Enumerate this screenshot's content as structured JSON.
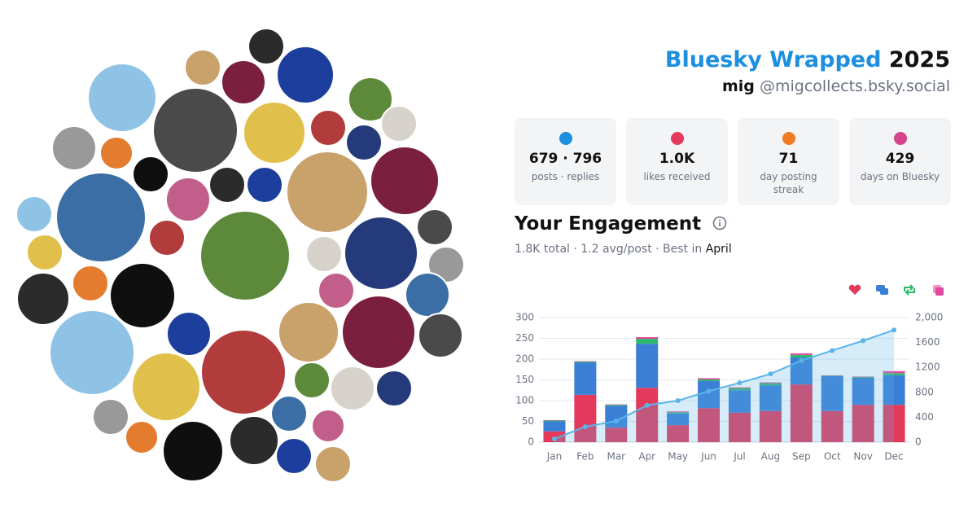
{
  "header": {
    "title": "Bluesky Wrapped",
    "year": "2025",
    "name": "mig",
    "handle": "@migcollects.bsky.social"
  },
  "stats": [
    {
      "value": "679 · 796",
      "label": "posts · replies"
    },
    {
      "value": "1.0K",
      "label": "likes received"
    },
    {
      "value": "71",
      "label": "day posting streak"
    },
    {
      "value": "429",
      "label": "days on Bluesky"
    }
  ],
  "engagement": {
    "title": "Your Engagement",
    "summary": "1.8K total · 1.2 avg/post · Best in",
    "best": "April"
  },
  "chart_data": {
    "type": "bar",
    "stacked": true,
    "grid": true,
    "categories": [
      "Jan",
      "Feb",
      "Mar",
      "Apr",
      "May",
      "Jun",
      "Jul",
      "Aug",
      "Sep",
      "Oct",
      "Nov",
      "Dec"
    ],
    "series": [
      {
        "color": "#e3395a",
        "values": [
          26,
          114,
          35,
          131,
          41,
          82,
          71,
          75,
          139,
          75,
          90,
          90
        ]
      },
      {
        "color": "#3a7fd6",
        "values": [
          24,
          78,
          53,
          106,
          28,
          65,
          54,
          62,
          65,
          84,
          65,
          71
        ]
      },
      {
        "color": "#2fb86a",
        "values": [
          2,
          2,
          2,
          12,
          3,
          4,
          5,
          5,
          6,
          1,
          2,
          5
        ]
      },
      {
        "color": "#e44aa0",
        "values": [
          1,
          1,
          1,
          4,
          2,
          3,
          2,
          2,
          4,
          1,
          1,
          5
        ]
      },
      {
        "type": "line",
        "axis": "y2",
        "area": true,
        "color": "#5ab4e8",
        "values": [
          53,
          248,
          339,
          592,
          666,
          820,
          952,
          1096,
          1310,
          1471,
          1629,
          1800
        ]
      }
    ],
    "ylim": [
      0,
      300
    ],
    "yticks": [
      0,
      50,
      100,
      150,
      200,
      250,
      300
    ],
    "y2lim": [
      0,
      2000
    ],
    "y2ticks": [
      0,
      400,
      800,
      1200,
      1600,
      {
        "value": 2000,
        "label": "2,000"
      }
    ]
  }
}
